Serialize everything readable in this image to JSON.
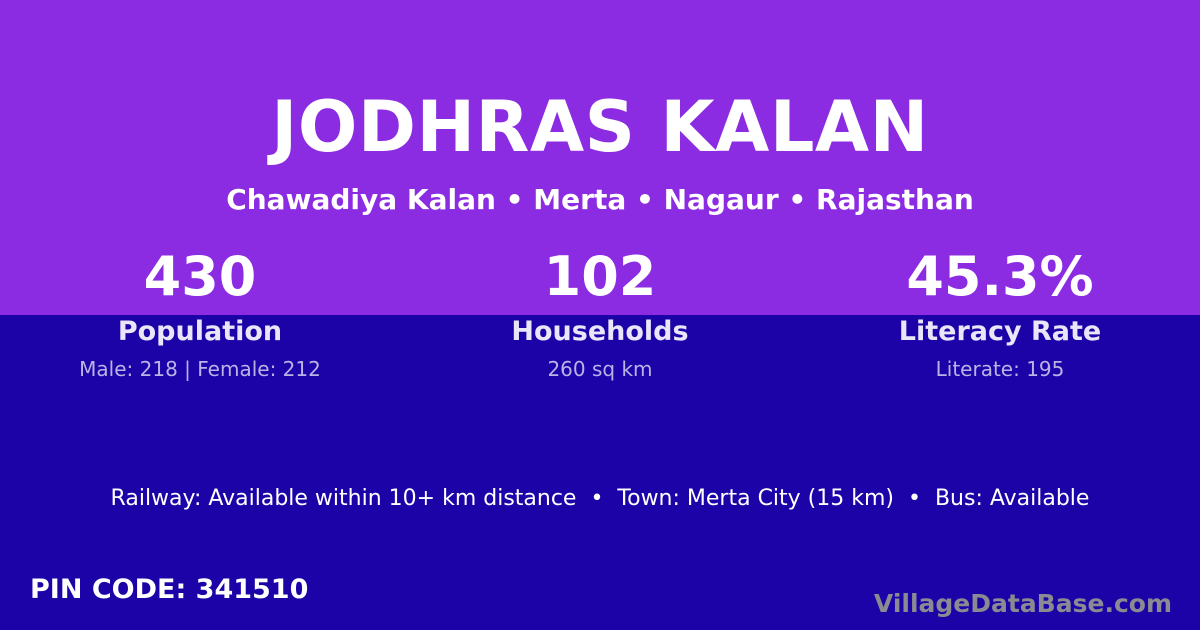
{
  "colors": {
    "top_background": "#8B2BE2",
    "bottom_background": "#1B03A8",
    "text_primary": "#FFFFFF",
    "stat_label": "#EAE5F8",
    "stat_sublabel": "#BBB3E5",
    "watermark": "#8A8A92"
  },
  "header": {
    "title": "JODHRAS KALAN",
    "subtitle": "Chawadiya Kalan • Merta • Nagaur • Rajasthan"
  },
  "stats": [
    {
      "value": "430",
      "label": "Population",
      "sub": "Male: 218 | Female: 212"
    },
    {
      "value": "102",
      "label": "Households",
      "sub": "260 sq km"
    },
    {
      "value": "45.3%",
      "label": "Literacy Rate",
      "sub": "Literate: 195"
    }
  ],
  "amenities": "Railway: Available within 10+ km distance  •  Town: Merta City (15 km)  •  Bus: Available",
  "footer": {
    "pin_code": "PIN CODE: 341510",
    "watermark": "VillageDataBase.com"
  }
}
